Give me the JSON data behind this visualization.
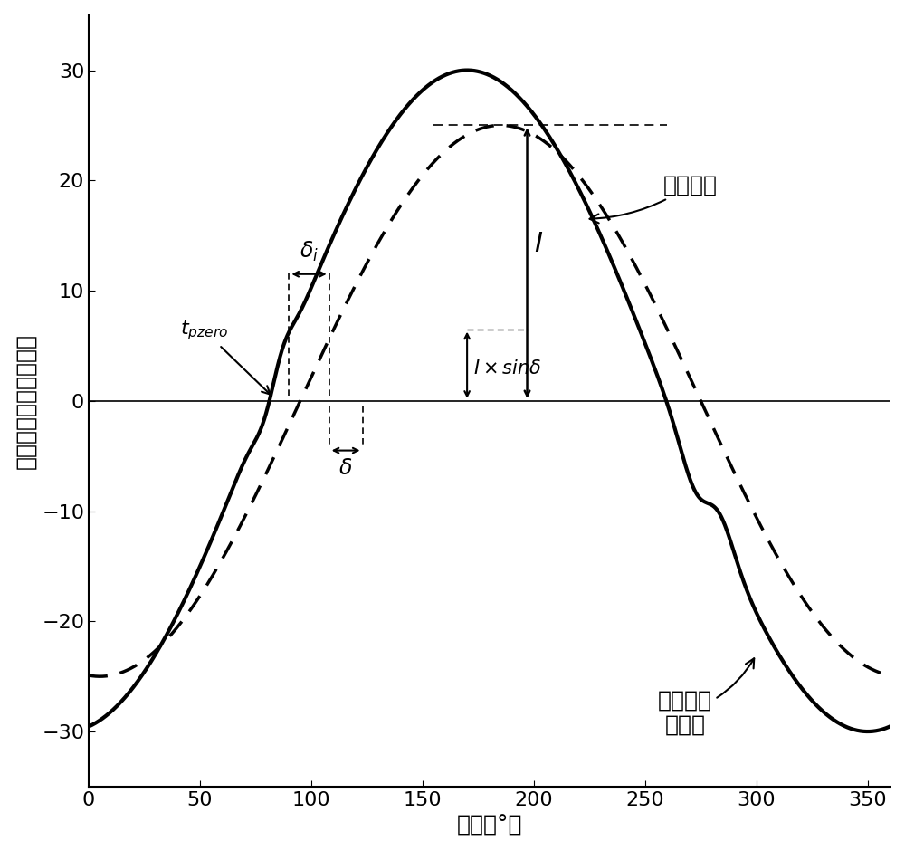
{
  "xlabel": "角度（°）",
  "ylabel_text": "零序电流幅値（安厘）",
  "xlim": [
    0,
    360
  ],
  "ylim": [
    -35,
    35
  ],
  "xticks": [
    0,
    50,
    100,
    150,
    200,
    250,
    300,
    350
  ],
  "yticks": [
    -30,
    -20,
    -10,
    0,
    10,
    20,
    30
  ],
  "amplitude_solid": 30,
  "amplitude_dotted": 25,
  "I_value": 25,
  "I_sin_delta": 6.5,
  "annotation_jibo": "基波分量",
  "annotation_lvbo_line1": "滤波后零",
  "annotation_lvbo_line2": "序电流",
  "label_tpzero": "$t_{pzero}$",
  "label_delta_i": "$\\delta_i$",
  "label_delta": "$\\delta$",
  "label_I": "$I$",
  "label_Isindelta": "$I\\times sin\\delta$",
  "background_color": "#ffffff",
  "line_color": "#000000"
}
